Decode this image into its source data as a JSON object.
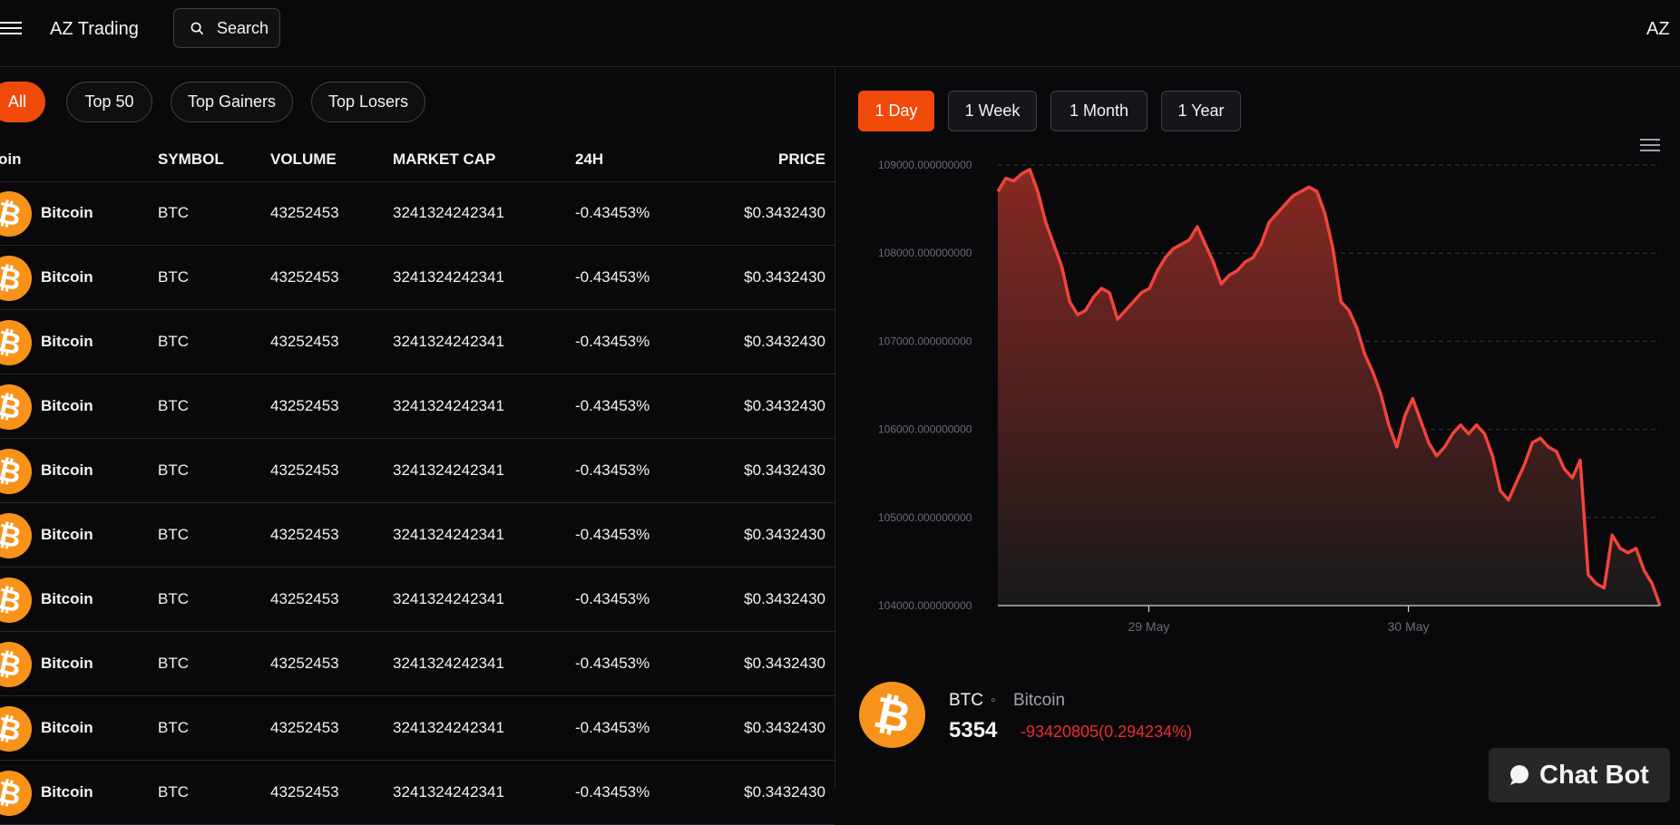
{
  "header": {
    "brand": "AZ Trading",
    "search_label": "Search",
    "avatar_initials": "AZ"
  },
  "filters": [
    {
      "label": "All",
      "active": true
    },
    {
      "label": "Top 50",
      "active": false
    },
    {
      "label": "Top Gainers",
      "active": false
    },
    {
      "label": "Top Losers",
      "active": false
    }
  ],
  "table": {
    "columns": [
      "oin",
      "SYMBOL",
      "VOLUME",
      "MARKET CAP",
      "24H",
      "PRICE"
    ],
    "rows": [
      {
        "name": "Bitcoin",
        "symbol": "BTC",
        "volume": "43252453",
        "market_cap": "3241324242341",
        "change_24h": "-0.43453%",
        "price": "$0.3432430"
      },
      {
        "name": "Bitcoin",
        "symbol": "BTC",
        "volume": "43252453",
        "market_cap": "3241324242341",
        "change_24h": "-0.43453%",
        "price": "$0.3432430"
      },
      {
        "name": "Bitcoin",
        "symbol": "BTC",
        "volume": "43252453",
        "market_cap": "3241324242341",
        "change_24h": "-0.43453%",
        "price": "$0.3432430"
      },
      {
        "name": "Bitcoin",
        "symbol": "BTC",
        "volume": "43252453",
        "market_cap": "3241324242341",
        "change_24h": "-0.43453%",
        "price": "$0.3432430"
      },
      {
        "name": "Bitcoin",
        "symbol": "BTC",
        "volume": "43252453",
        "market_cap": "3241324242341",
        "change_24h": "-0.43453%",
        "price": "$0.3432430"
      },
      {
        "name": "Bitcoin",
        "symbol": "BTC",
        "volume": "43252453",
        "market_cap": "3241324242341",
        "change_24h": "-0.43453%",
        "price": "$0.3432430"
      },
      {
        "name": "Bitcoin",
        "symbol": "BTC",
        "volume": "43252453",
        "market_cap": "3241324242341",
        "change_24h": "-0.43453%",
        "price": "$0.3432430"
      },
      {
        "name": "Bitcoin",
        "symbol": "BTC",
        "volume": "43252453",
        "market_cap": "3241324242341",
        "change_24h": "-0.43453%",
        "price": "$0.3432430"
      },
      {
        "name": "Bitcoin",
        "symbol": "BTC",
        "volume": "43252453",
        "market_cap": "3241324242341",
        "change_24h": "-0.43453%",
        "price": "$0.3432430"
      },
      {
        "name": "Bitcoin",
        "symbol": "BTC",
        "volume": "43252453",
        "market_cap": "3241324242341",
        "change_24h": "-0.43453%",
        "price": "$0.3432430"
      }
    ]
  },
  "ranges": [
    {
      "label": "1 Day",
      "active": true
    },
    {
      "label": "1 Week",
      "active": false
    },
    {
      "label": "1 Month",
      "active": false
    },
    {
      "label": "1 Year",
      "active": false
    }
  ],
  "chart_data": {
    "type": "area",
    "title": "",
    "xlabel": "",
    "ylabel": "",
    "x_ticks": [
      "29 May",
      "30 May"
    ],
    "y_ticks": [
      "104000.000000000",
      "105000.000000000",
      "106000.000000000",
      "107000.000000000",
      "108000.000000000",
      "109000.000000000"
    ],
    "ylim": [
      104000,
      109000
    ],
    "grid": true,
    "line_color": "#f0443a",
    "series": [
      {
        "values": [
          108700,
          108850,
          108820,
          108900,
          108950,
          108700,
          108350,
          108100,
          107850,
          107450,
          107300,
          107350,
          107500,
          107600,
          107550,
          107250,
          107350,
          107450,
          107550,
          107600,
          107800,
          107950,
          108050,
          108100,
          108150,
          108300,
          108100,
          107900,
          107650,
          107750,
          107800,
          107900,
          107950,
          108100,
          108350,
          108450,
          108550,
          108650,
          108700,
          108750,
          108700,
          108450,
          108050,
          107450,
          107350,
          107150,
          106850,
          106650,
          106400,
          106050,
          105800,
          106150,
          106350,
          106100,
          105850,
          105700,
          105800,
          105950,
          106050,
          105950,
          106050,
          105950,
          105700,
          105300,
          105200,
          105400,
          105600,
          105850,
          105900,
          105800,
          105750,
          105550,
          105450,
          105650,
          104350,
          104250,
          104200,
          104800,
          104650,
          104600,
          104650,
          104400,
          104250,
          104000
        ]
      }
    ]
  },
  "summary": {
    "symbol": "BTC",
    "separator": "◦",
    "name": "Bitcoin",
    "price": "5354",
    "change": "-93420805(0.294234%)"
  },
  "chatbot": {
    "label": "Chat Bot"
  },
  "colors": {
    "accent": "#f04a0a",
    "negative": "#ef2b2b",
    "bitcoin": "#f7931a",
    "background": "#09090b"
  }
}
